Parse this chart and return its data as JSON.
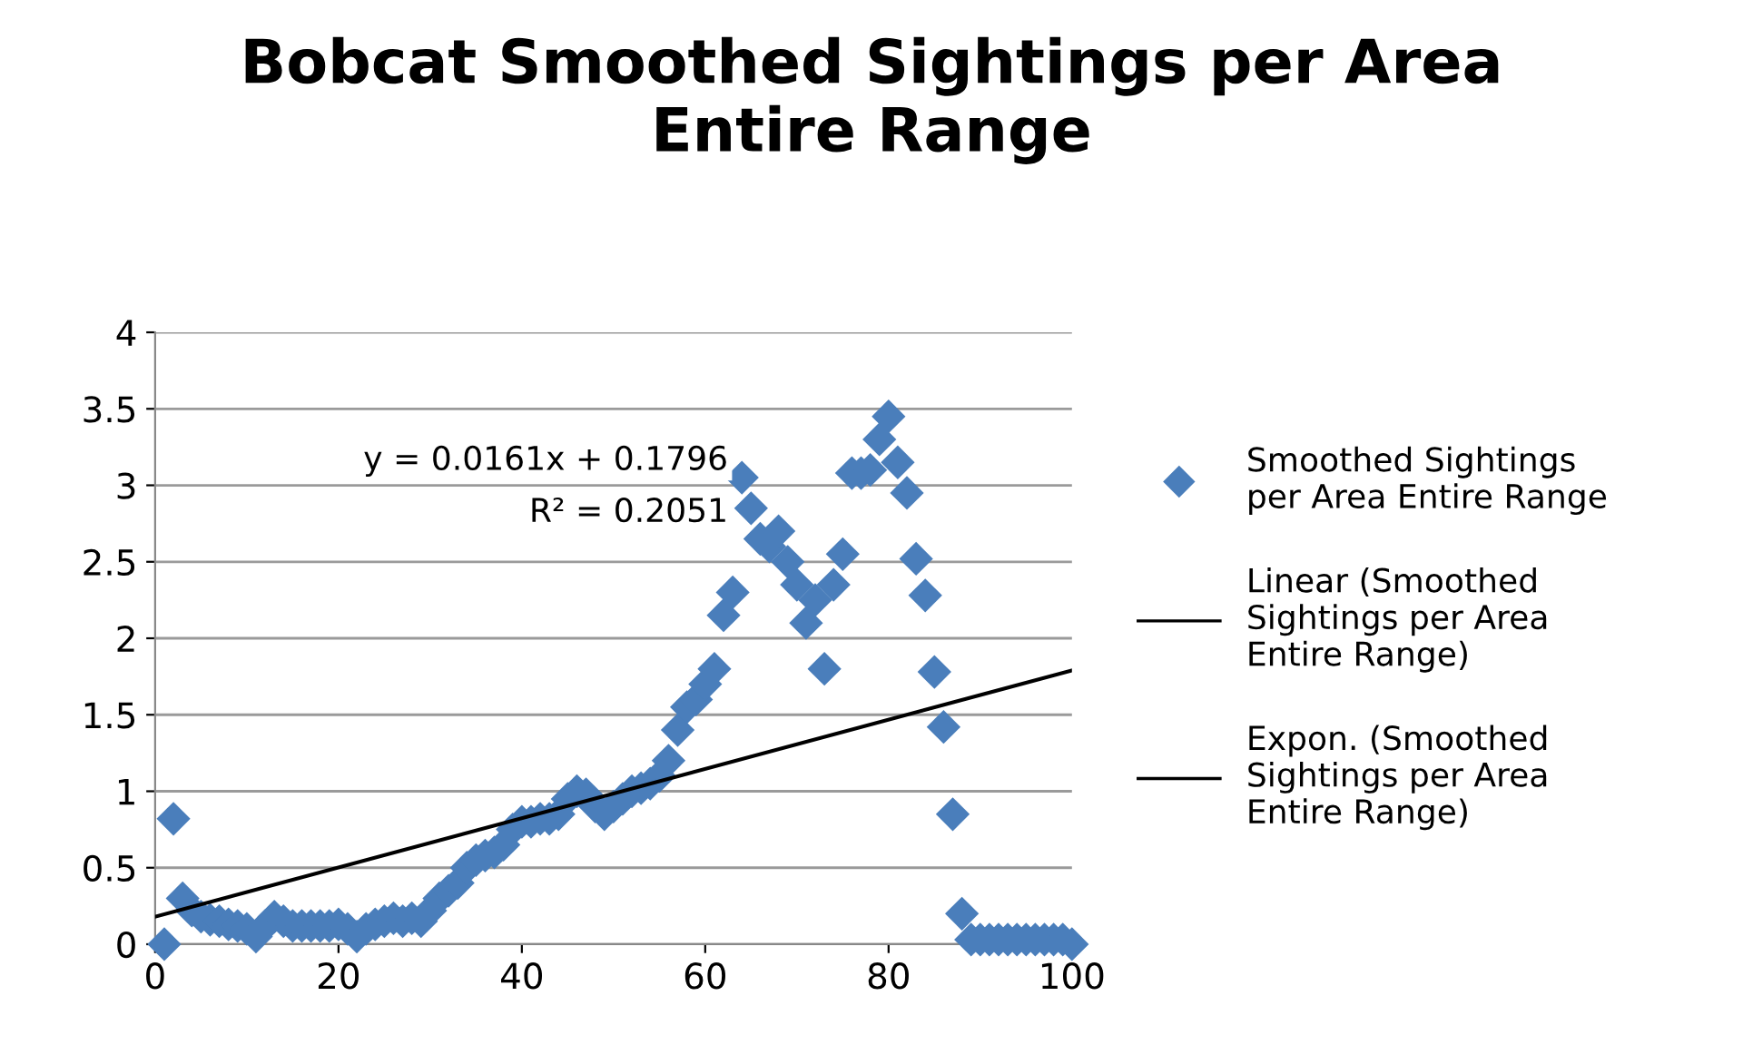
{
  "chart_data": {
    "type": "scatter",
    "title": "Bobcat Smoothed Sightings per Area\nEntire Range",
    "series": [
      {
        "name": "Smoothed Sightings per Area Entire Range",
        "color": "#4a7ebb",
        "marker": "diamond",
        "x": [
          1,
          2,
          3,
          4,
          5,
          6,
          7,
          8,
          9,
          10,
          11,
          12,
          13,
          14,
          15,
          16,
          17,
          18,
          19,
          20,
          21,
          22,
          23,
          24,
          25,
          26,
          27,
          28,
          29,
          30,
          31,
          32,
          33,
          34,
          35,
          36,
          37,
          38,
          39,
          40,
          41,
          42,
          43,
          44,
          45,
          46,
          47,
          48,
          49,
          50,
          51,
          52,
          53,
          54,
          55,
          56,
          57,
          58,
          59,
          60,
          61,
          62,
          63,
          64,
          65,
          66,
          67,
          68,
          69,
          70,
          71,
          72,
          73,
          74,
          75,
          76,
          77,
          78,
          79,
          80,
          81,
          82,
          83,
          84,
          85,
          86,
          87,
          88,
          89,
          90,
          91,
          92,
          93,
          94,
          95,
          96,
          97,
          98,
          99,
          100
        ],
        "values": [
          0.0,
          0.82,
          0.3,
          0.22,
          0.18,
          0.16,
          0.15,
          0.13,
          0.12,
          0.1,
          0.05,
          0.12,
          0.18,
          0.15,
          0.12,
          0.12,
          0.12,
          0.12,
          0.12,
          0.13,
          0.1,
          0.05,
          0.1,
          0.13,
          0.15,
          0.17,
          0.15,
          0.17,
          0.15,
          0.22,
          0.3,
          0.35,
          0.4,
          0.5,
          0.55,
          0.58,
          0.6,
          0.65,
          0.75,
          0.8,
          0.8,
          0.82,
          0.82,
          0.85,
          0.95,
          1.0,
          0.98,
          0.9,
          0.85,
          0.9,
          0.95,
          1.0,
          1.02,
          1.05,
          1.1,
          1.2,
          1.4,
          1.55,
          1.6,
          1.7,
          1.8,
          2.15,
          2.3,
          3.05,
          2.85,
          2.65,
          2.6,
          2.7,
          2.5,
          2.35,
          2.1,
          2.25,
          1.8,
          2.35,
          2.55,
          3.08,
          3.08,
          3.1,
          3.3,
          3.45,
          3.15,
          2.95,
          2.52,
          2.28,
          1.78,
          1.42,
          0.85,
          0.2,
          0.03,
          0.03,
          0.03,
          0.03,
          0.03,
          0.03,
          0.03,
          0.03,
          0.03,
          0.03,
          0.03,
          0.0
        ]
      },
      {
        "name": "Linear (Smoothed Sightings per Area Entire Range)",
        "type": "line",
        "color": "#000000",
        "line_style": "solid",
        "x": [
          0,
          100
        ],
        "values": [
          0.18,
          1.79
        ]
      },
      {
        "name": "Expon. (Smoothed Sightings per Area Entire Range)",
        "type": "line",
        "color": "#000000",
        "line_style": "solid"
      }
    ],
    "annotations": [
      "y = 0.0161x + 0.1796",
      "R² = 0.2051"
    ],
    "xlim": [
      0,
      100
    ],
    "xticks": [
      0,
      20,
      40,
      60,
      80,
      100
    ],
    "ylim": [
      0,
      4
    ],
    "yticks": [
      0,
      0.5,
      1,
      1.5,
      2,
      2.5,
      3,
      3.5,
      4
    ],
    "grid": "y",
    "legend": "right"
  }
}
